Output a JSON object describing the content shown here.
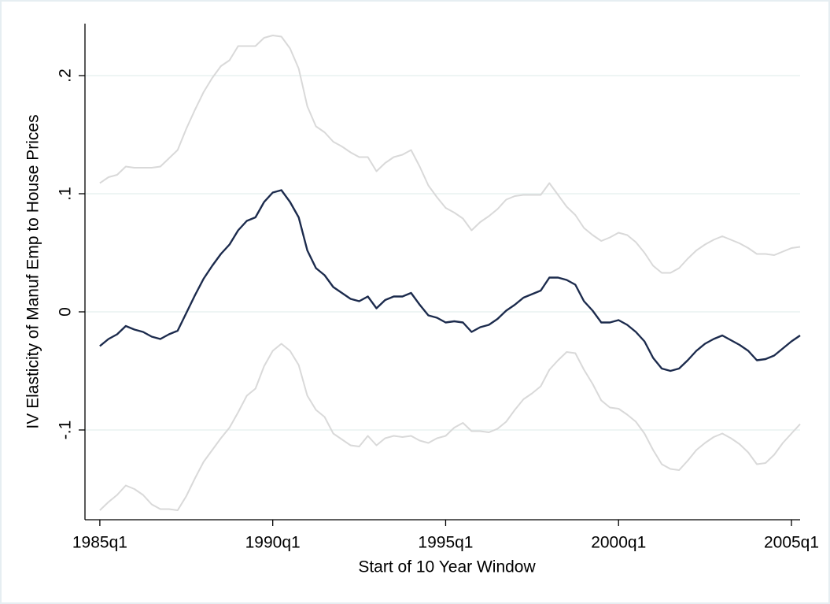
{
  "chart_data": {
    "type": "line",
    "xlabel": "Start of 10 Year Window",
    "ylabel": "IV Elasticity of Manuf Emp to House Prices",
    "x": [
      1985,
      1985.25,
      1985.5,
      1985.75,
      1986,
      1986.25,
      1986.5,
      1986.75,
      1987,
      1987.25,
      1987.5,
      1987.75,
      1988,
      1988.25,
      1988.5,
      1988.75,
      1989,
      1989.25,
      1989.5,
      1989.75,
      1990,
      1990.25,
      1990.5,
      1990.75,
      1991,
      1991.25,
      1991.5,
      1991.75,
      1992,
      1992.25,
      1992.5,
      1992.75,
      1993,
      1993.25,
      1993.5,
      1993.75,
      1994,
      1994.25,
      1994.5,
      1994.75,
      1995,
      1995.25,
      1995.5,
      1995.75,
      1996,
      1996.25,
      1996.5,
      1996.75,
      1997,
      1997.25,
      1997.5,
      1997.75,
      1998,
      1998.25,
      1998.5,
      1998.75,
      1999,
      1999.25,
      1999.5,
      1999.75,
      2000,
      2000.25,
      2000.5,
      2000.75,
      2001,
      2001.25,
      2001.5,
      2001.75,
      2002,
      2002.25,
      2002.5,
      2002.75,
      2003,
      2003.25,
      2003.5,
      2003.75,
      2004,
      2004.25,
      2004.5,
      2004.75,
      2005,
      2005.25
    ],
    "series": [
      {
        "color": "#d9d9d9",
        "values": [
          0.109,
          0.114,
          0.116,
          0.123,
          0.122,
          0.122,
          0.122,
          0.123,
          0.13,
          0.137,
          0.155,
          0.171,
          0.186,
          0.198,
          0.208,
          0.213,
          0.225,
          0.225,
          0.225,
          0.232,
          0.234,
          0.233,
          0.223,
          0.206,
          0.174,
          0.157,
          0.152,
          0.144,
          0.14,
          0.135,
          0.131,
          0.131,
          0.119,
          0.126,
          0.131,
          0.133,
          0.137,
          0.123,
          0.107,
          0.097,
          0.088,
          0.084,
          0.079,
          0.069,
          0.076,
          0.081,
          0.087,
          0.095,
          0.098,
          0.099,
          0.099,
          0.099,
          0.109,
          0.099,
          0.089,
          0.082,
          0.071,
          0.065,
          0.06,
          0.063,
          0.067,
          0.065,
          0.059,
          0.05,
          0.039,
          0.033,
          0.033,
          0.037,
          0.045,
          0.052,
          0.057,
          0.061,
          0.064,
          0.061,
          0.058,
          0.054,
          0.049,
          0.049,
          0.048,
          0.051,
          0.054,
          0.055
        ]
      },
      {
        "color": "#d9d9d9",
        "values": [
          -0.168,
          -0.161,
          -0.155,
          -0.147,
          -0.15,
          -0.155,
          -0.163,
          -0.167,
          -0.167,
          -0.168,
          -0.156,
          -0.141,
          -0.127,
          -0.117,
          -0.107,
          -0.098,
          -0.085,
          -0.071,
          -0.065,
          -0.046,
          -0.033,
          -0.027,
          -0.033,
          -0.045,
          -0.071,
          -0.083,
          -0.089,
          -0.103,
          -0.108,
          -0.113,
          -0.114,
          -0.105,
          -0.113,
          -0.107,
          -0.105,
          -0.106,
          -0.105,
          -0.109,
          -0.111,
          -0.107,
          -0.105,
          -0.098,
          -0.094,
          -0.101,
          -0.101,
          -0.102,
          -0.099,
          -0.093,
          -0.083,
          -0.074,
          -0.069,
          -0.063,
          -0.049,
          -0.041,
          -0.034,
          -0.035,
          -0.049,
          -0.061,
          -0.075,
          -0.081,
          -0.082,
          -0.087,
          -0.093,
          -0.103,
          -0.117,
          -0.129,
          -0.133,
          -0.134,
          -0.126,
          -0.117,
          -0.111,
          -0.106,
          -0.103,
          -0.107,
          -0.112,
          -0.119,
          -0.129,
          -0.128,
          -0.121,
          -0.111,
          -0.103,
          -0.095
        ]
      },
      {
        "color": "#1c2b4d",
        "values": [
          -0.029,
          -0.023,
          -0.019,
          -0.012,
          -0.015,
          -0.017,
          -0.021,
          -0.023,
          -0.019,
          -0.016,
          -0.001,
          0.014,
          0.028,
          0.039,
          0.049,
          0.057,
          0.069,
          0.077,
          0.08,
          0.093,
          0.101,
          0.103,
          0.093,
          0.08,
          0.052,
          0.037,
          0.031,
          0.021,
          0.016,
          0.011,
          0.009,
          0.013,
          0.003,
          0.01,
          0.013,
          0.013,
          0.016,
          0.006,
          -0.003,
          -0.005,
          -0.009,
          -0.008,
          -0.009,
          -0.017,
          -0.013,
          -0.011,
          -0.006,
          0.001,
          0.006,
          0.012,
          0.015,
          0.018,
          0.029,
          0.029,
          0.027,
          0.023,
          0.009,
          0.001,
          -0.009,
          -0.009,
          -0.007,
          -0.011,
          -0.017,
          -0.025,
          -0.039,
          -0.048,
          -0.05,
          -0.048,
          -0.041,
          -0.033,
          -0.027,
          -0.023,
          -0.02,
          -0.024,
          -0.028,
          -0.033,
          -0.041,
          -0.04,
          -0.037,
          -0.031,
          -0.025,
          -0.02
        ]
      }
    ],
    "xlim": [
      1984.57,
      2005.25
    ],
    "xticks": [
      {
        "value": 1985,
        "label": "1985q1"
      },
      {
        "value": 1990,
        "label": "1990q1"
      },
      {
        "value": 1995,
        "label": "1995q1"
      },
      {
        "value": 2000,
        "label": "2000q1"
      },
      {
        "value": 2005,
        "label": "2005q1"
      }
    ],
    "ylim": [
      -0.176,
      0.244
    ],
    "yticks": [
      {
        "value": -0.1,
        "label": "-.1"
      },
      0,
      {
        "value": 0.1,
        "label": ".1"
      },
      {
        "value": 0.2,
        "label": ".2"
      }
    ],
    "grid": true
  }
}
